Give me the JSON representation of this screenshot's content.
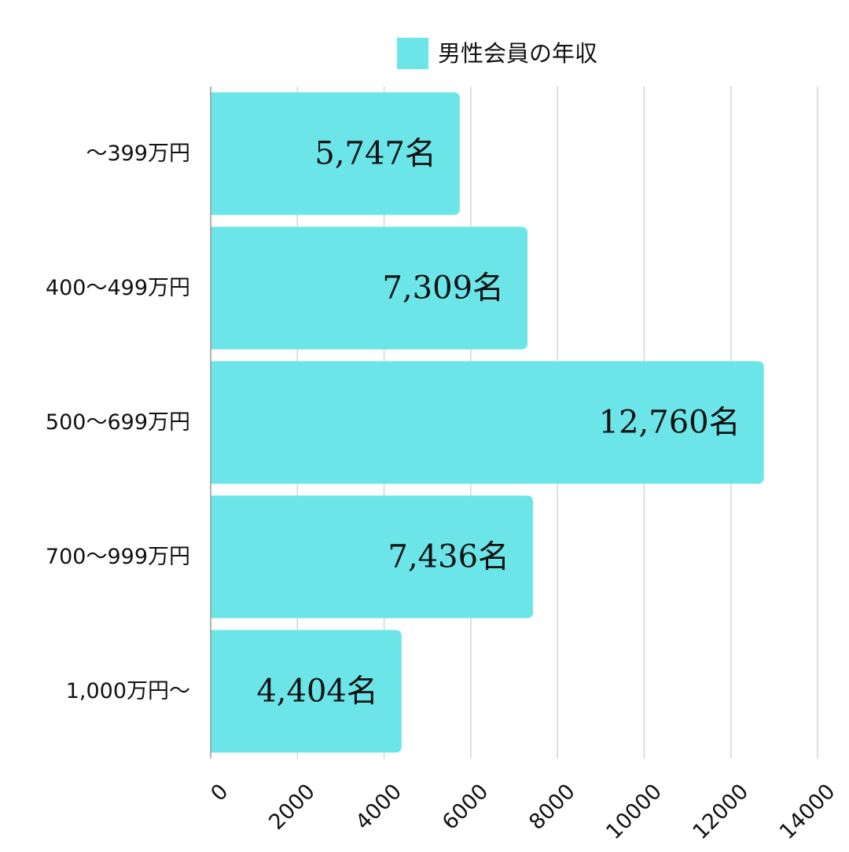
{
  "chart_data": {
    "type": "bar",
    "orientation": "horizontal",
    "categories": [
      "～399万円",
      "400～499万円",
      "500～699万円",
      "700～999万円",
      "1,000万円～"
    ],
    "series": [
      {
        "name": "男性会員の年収",
        "values": [
          5747,
          7309,
          12760,
          7436,
          4404
        ],
        "data_labels": [
          "5,747名",
          "7,309名",
          "12,760名",
          "7,436名",
          "4,404名"
        ],
        "color": "#6ce5e8"
      }
    ],
    "xlim": [
      0,
      14000
    ],
    "x_ticks": [
      0,
      2000,
      4000,
      6000,
      8000,
      10000,
      12000,
      14000
    ],
    "x_tick_labels": [
      "0",
      "2000",
      "4000",
      "6000",
      "8000",
      "10000",
      "12000",
      "14000"
    ],
    "grid": true,
    "legend": "top-center",
    "gridline_color": "#d4d4d4"
  }
}
